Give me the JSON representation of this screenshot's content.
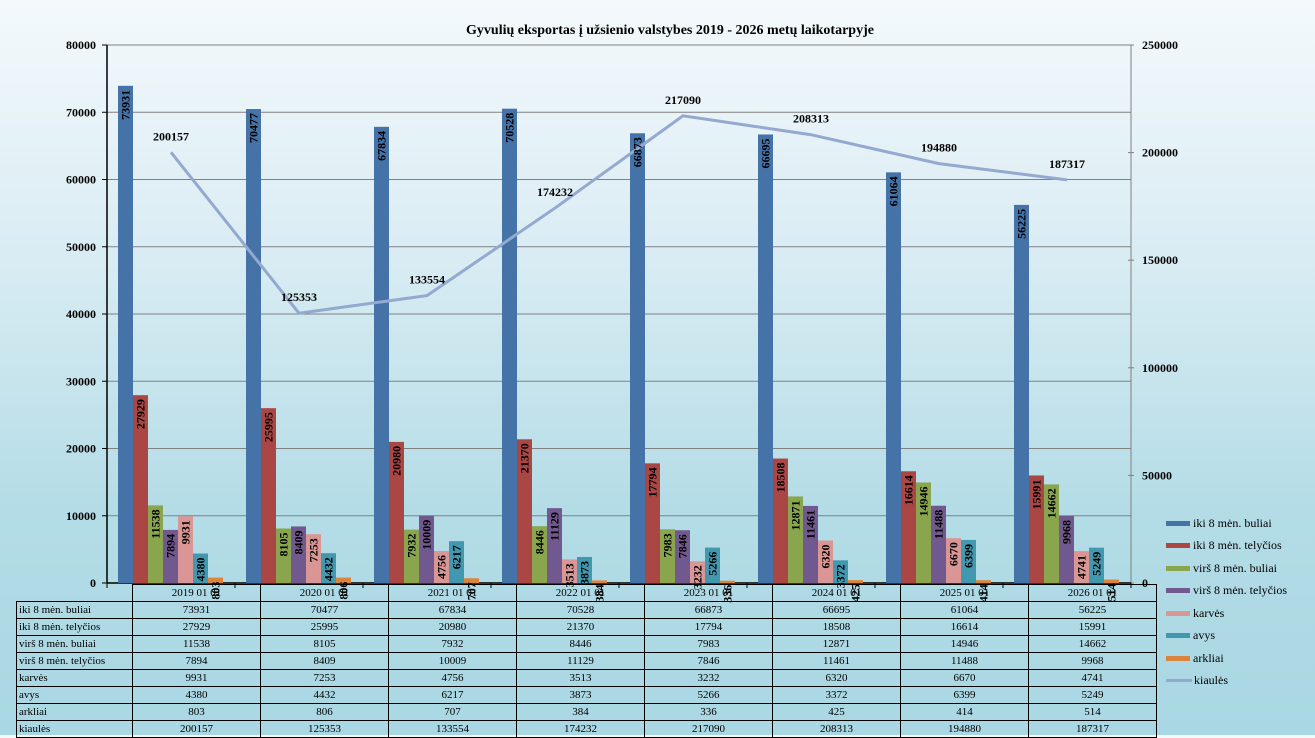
{
  "chart_data": {
    "type": "bar",
    "title": "Gyvulių  eksportas į užsienio valstybes 2019 - 2026 metų laikotarpyje",
    "categories": [
      "2019 01 01",
      "2020 01 01",
      "2021 01 01",
      "2022 01 01",
      "2023 01 01",
      "2024 01 01",
      "2025 01 01",
      "2026 01 01"
    ],
    "ylim": [
      0,
      80000
    ],
    "y_ticks": [
      0,
      10000,
      20000,
      30000,
      40000,
      50000,
      60000,
      70000,
      80000
    ],
    "y2lim": [
      0,
      250000
    ],
    "y2_ticks": [
      0,
      50000,
      100000,
      150000,
      200000,
      250000
    ],
    "grid": true,
    "legend_position": "right",
    "series": [
      {
        "name": "iki 8 mėn. buliai",
        "type": "bar",
        "axis": "left",
        "color": "#4572a7",
        "values": [
          73931,
          70477,
          67834,
          70528,
          66873,
          66695,
          61064,
          56225
        ]
      },
      {
        "name": "iki 8 mėn. telyčios",
        "type": "bar",
        "axis": "left",
        "color": "#aa4643",
        "values": [
          27929,
          25995,
          20980,
          21370,
          17794,
          18508,
          16614,
          15991
        ]
      },
      {
        "name": "virš 8 mėn. buliai",
        "type": "bar",
        "axis": "left",
        "color": "#89a54e",
        "values": [
          11538,
          8105,
          7932,
          8446,
          7983,
          12871,
          14946,
          14662
        ]
      },
      {
        "name": "virš 8 mėn. telyčios",
        "type": "bar",
        "axis": "left",
        "color": "#71588f",
        "values": [
          7894,
          8409,
          10009,
          11129,
          7846,
          11461,
          11488,
          9968
        ]
      },
      {
        "name": "karvės",
        "type": "bar",
        "axis": "left",
        "color": "#d99694",
        "values": [
          9931,
          7253,
          4756,
          3513,
          3232,
          6320,
          6670,
          4741
        ]
      },
      {
        "name": "avys",
        "type": "bar",
        "axis": "left",
        "color": "#4198af",
        "values": [
          4380,
          4432,
          6217,
          3873,
          5266,
          3372,
          6399,
          5249
        ]
      },
      {
        "name": "arkliai",
        "type": "bar",
        "axis": "left",
        "color": "#db843d",
        "values": [
          803,
          806,
          707,
          384,
          336,
          425,
          414,
          514
        ]
      },
      {
        "name": "kiaulės",
        "type": "line",
        "axis": "right",
        "color": "#93a9cf",
        "values": [
          200157,
          125353,
          133554,
          174232,
          217090,
          208313,
          194880,
          187317
        ]
      }
    ]
  }
}
